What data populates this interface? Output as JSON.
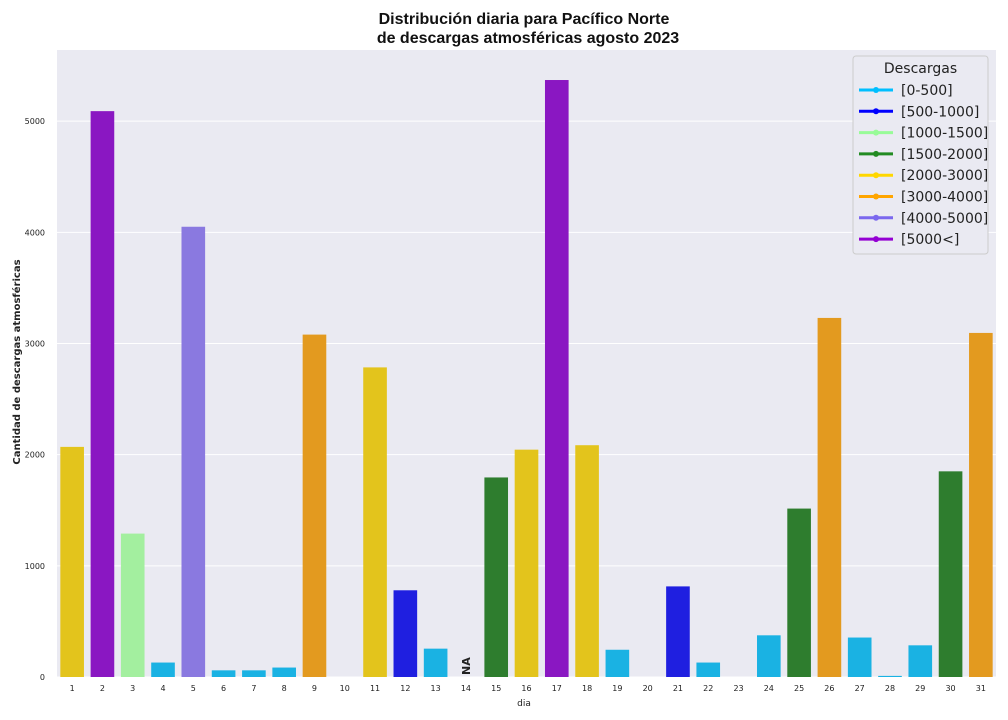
{
  "chart_data": {
    "type": "bar",
    "title_lines": [
      "Distribución diaria para Pacífico Norte",
      "de descargas atmosféricas agosto 2023"
    ],
    "xlabel": "dia",
    "ylabel": "Cantidad de descargas atmosféricas",
    "ylim": [
      0,
      5640
    ],
    "yticks": [
      0,
      1000,
      2000,
      3000,
      4000,
      5000
    ],
    "grid": true,
    "legend_position": "top-right",
    "categories": [
      "1",
      "2",
      "3",
      "4",
      "5",
      "6",
      "7",
      "8",
      "9",
      "10",
      "11",
      "12",
      "13",
      "14",
      "15",
      "16",
      "17",
      "18",
      "19",
      "20",
      "21",
      "22",
      "23",
      "24",
      "25",
      "26",
      "27",
      "28",
      "29",
      "30",
      "31"
    ],
    "values": [
      2070,
      5090,
      1290,
      130,
      4050,
      60,
      60,
      85,
      3080,
      0,
      2785,
      780,
      255,
      null,
      1795,
      2045,
      5370,
      2085,
      245,
      0,
      815,
      130,
      0,
      375,
      1515,
      3230,
      355,
      10,
      285,
      1850,
      3095
    ],
    "missing_label": "NA",
    "legend": {
      "title": "Descargas",
      "entries": [
        {
          "label": "[0-500]",
          "color": "#00bfff"
        },
        {
          "label": "[500-1000]",
          "color": "#0000ff"
        },
        {
          "label": "[1000-1500]",
          "color": "#98fb98"
        },
        {
          "label": "[1500-2000]",
          "color": "#228b22"
        },
        {
          "label": "[2000-3000]",
          "color": "#ffd700"
        },
        {
          "label": "[3000-4000]",
          "color": "#ffa500"
        },
        {
          "label": "[4000-5000]",
          "color": "#7b68ee"
        },
        {
          "label": "[5000<]",
          "color": "#9400d3"
        }
      ]
    },
    "bar_colors": {
      "[0-500]": "#1ab2e3",
      "[500-1000]": "#1f1fe0",
      "[1000-1500]": "#a3ef9f",
      "[1500-2000]": "#2e7d2e",
      "[2000-3000]": "#e3c41c",
      "[3000-4000]": "#e39a1f",
      "[4000-5000]": "#8a79e0",
      "[5000<]": "#8a17c2"
    },
    "background_color": "#eaeaf2"
  }
}
